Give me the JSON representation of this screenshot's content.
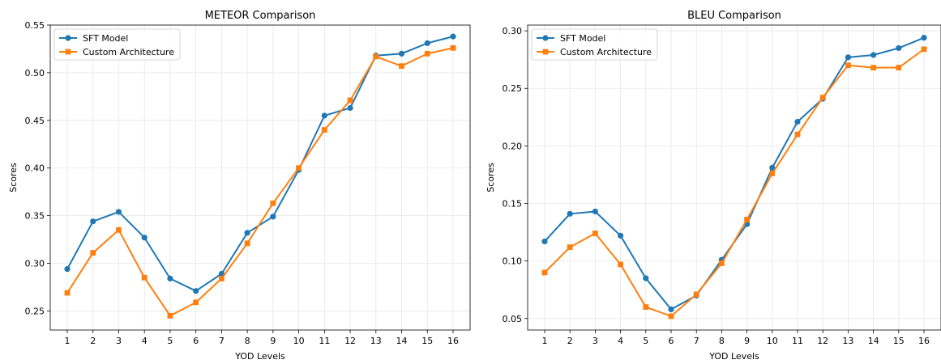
{
  "chart_data": [
    {
      "type": "line",
      "title": "METEOR Comparison",
      "xlabel": "YOD Levels",
      "ylabel": "Scores",
      "categories": [
        "1",
        "2",
        "3",
        "4",
        "5",
        "6",
        "7",
        "8",
        "9",
        "10",
        "11",
        "12",
        "13",
        "14",
        "15",
        "16"
      ],
      "x": [
        1,
        2,
        3,
        4,
        5,
        6,
        7,
        8,
        9,
        10,
        11,
        12,
        13,
        14,
        15,
        16
      ],
      "ylim": [
        0.23,
        0.55
      ],
      "yticks": [
        "0.25",
        "0.30",
        "0.35",
        "0.40",
        "0.45",
        "0.50",
        "0.55"
      ],
      "ytick_values": [
        0.25,
        0.3,
        0.35,
        0.4,
        0.45,
        0.5,
        0.55
      ],
      "grid": true,
      "legend": "top-left",
      "series": [
        {
          "name": "SFT Model",
          "color": "#1f77b4",
          "marker": "circle",
          "values": [
            0.294,
            0.344,
            0.354,
            0.327,
            0.284,
            0.271,
            0.289,
            0.332,
            0.349,
            0.398,
            0.455,
            0.463,
            0.518,
            0.52,
            0.531,
            0.538
          ]
        },
        {
          "name": "Custom Architecture",
          "color": "#ff7f0e",
          "marker": "square",
          "values": [
            0.269,
            0.311,
            0.335,
            0.285,
            0.245,
            0.259,
            0.284,
            0.321,
            0.363,
            0.4,
            0.44,
            0.471,
            0.517,
            0.507,
            0.52,
            0.526
          ]
        }
      ]
    },
    {
      "type": "line",
      "title": "BLEU Comparison",
      "xlabel": "YOD Levels",
      "ylabel": "Scores",
      "categories": [
        "1",
        "2",
        "3",
        "4",
        "5",
        "6",
        "7",
        "8",
        "9",
        "10",
        "11",
        "12",
        "13",
        "14",
        "15",
        "16"
      ],
      "x": [
        1,
        2,
        3,
        4,
        5,
        6,
        7,
        8,
        9,
        10,
        11,
        12,
        13,
        14,
        15,
        16
      ],
      "ylim": [
        0.04,
        0.305
      ],
      "yticks": [
        "0.05",
        "0.10",
        "0.15",
        "0.20",
        "0.25",
        "0.30"
      ],
      "ytick_values": [
        0.05,
        0.1,
        0.15,
        0.2,
        0.25,
        0.3
      ],
      "grid": true,
      "legend": "top-left",
      "series": [
        {
          "name": "SFT Model",
          "color": "#1f77b4",
          "marker": "circle",
          "values": [
            0.117,
            0.141,
            0.143,
            0.122,
            0.085,
            0.058,
            0.07,
            0.101,
            0.132,
            0.181,
            0.221,
            0.241,
            0.277,
            0.279,
            0.285,
            0.294
          ]
        },
        {
          "name": "Custom Architecture",
          "color": "#ff7f0e",
          "marker": "square",
          "values": [
            0.09,
            0.112,
            0.124,
            0.097,
            0.06,
            0.052,
            0.071,
            0.098,
            0.136,
            0.176,
            0.21,
            0.242,
            0.27,
            0.268,
            0.268,
            0.284
          ]
        }
      ]
    }
  ]
}
